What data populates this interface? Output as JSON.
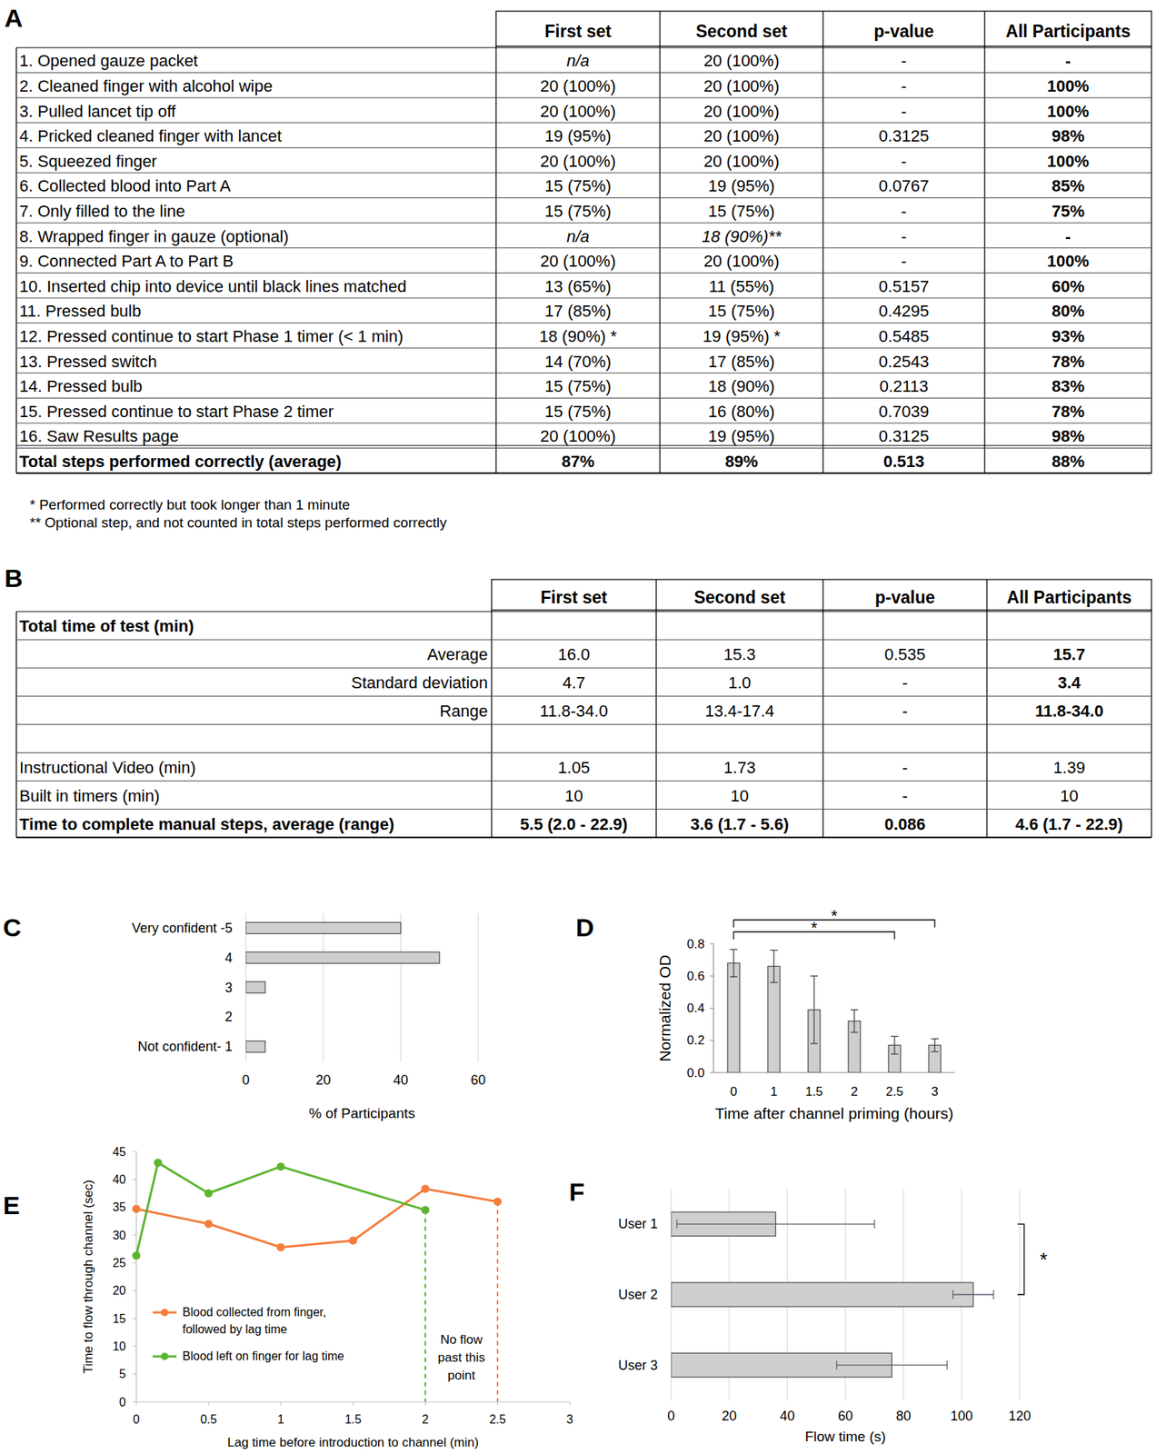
{
  "tables": [
    {
      "panel": "A",
      "header": [
        "First set",
        "Second set",
        "p-value",
        "All Participants"
      ],
      "rows": [
        {
          "label": "1. Opened gauze packet",
          "cells": [
            "n/a",
            "20 (100%)",
            "-",
            "-"
          ]
        },
        {
          "label": "2. Cleaned finger with alcohol wipe",
          "cells": [
            "20 (100%)",
            "20 (100%)",
            "-",
            "100%"
          ]
        },
        {
          "label": "3. Pulled lancet tip off",
          "cells": [
            "20 (100%)",
            "20 (100%)",
            "-",
            "100%"
          ]
        },
        {
          "label": "4. Pricked cleaned finger with lancet",
          "cells": [
            "19 (95%)",
            "20 (100%)",
            "0.3125",
            "98%"
          ]
        },
        {
          "label": "5. Squeezed finger",
          "cells": [
            "20 (100%)",
            "20 (100%)",
            "-",
            "100%"
          ]
        },
        {
          "label": "6. Collected blood into Part A",
          "cells": [
            "15 (75%)",
            "19 (95%)",
            "0.0767",
            "85%"
          ]
        },
        {
          "label": "7. Only filled to the line",
          "cells": [
            "15 (75%)",
            "15 (75%)",
            "-",
            "75%"
          ]
        },
        {
          "label": "8. Wrapped finger in gauze (optional)",
          "cells": [
            "n/a",
            "18 (90%)**",
            "-",
            "-"
          ]
        },
        {
          "label": "9. Connected Part A to Part B",
          "cells": [
            "20 (100%)",
            "20 (100%)",
            "-",
            "100%"
          ]
        },
        {
          "label": "10. Inserted chip into device until black lines matched",
          "cells": [
            "13 (65%)",
            "11 (55%)",
            "0.5157",
            "60%"
          ]
        },
        {
          "label": "11. Pressed bulb",
          "cells": [
            "17 (85%)",
            "15 (75%)",
            "0.4295",
            "80%"
          ]
        },
        {
          "label": "12. Pressed continue to start Phase 1 timer (< 1 min)",
          "cells": [
            "18 (90%) *",
            "19 (95%) *",
            "0.5485",
            "93%"
          ]
        },
        {
          "label": "13. Pressed switch",
          "cells": [
            "14 (70%)",
            "17 (85%)",
            "0.2543",
            "78%"
          ]
        },
        {
          "label": "14. Pressed bulb",
          "cells": [
            "15 (75%)",
            "18 (90%)",
            "0.2113",
            "83%"
          ]
        },
        {
          "label": "15. Pressed continue to start Phase 2 timer",
          "cells": [
            "15 (75%)",
            "16 (80%)",
            "0.7039",
            "78%"
          ]
        },
        {
          "label": "16. Saw Results page",
          "cells": [
            "20  (100%)",
            "19 (95%)",
            "0.3125",
            "98%"
          ]
        },
        {
          "label": "Total steps performed correctly (average)",
          "cells": [
            "87%",
            "89%",
            "0.513",
            "88%"
          ]
        }
      ],
      "footnotes": [
        "* Performed correctly but took longer than 1 minute",
        "** Optional step, and not counted in total steps performed correctly"
      ]
    },
    {
      "panel": "B",
      "header": [
        "First set",
        "Second set",
        "p-value",
        "All Participants"
      ],
      "rows": [
        {
          "label": "Total time of test (min)"
        },
        {
          "label": "Average",
          "cells": [
            "16.0",
            "15.3",
            "0.535",
            "15.7"
          ]
        },
        {
          "label": "Standard deviation",
          "cells": [
            "4.7",
            "1.0",
            "-",
            "3.4"
          ]
        },
        {
          "label": "Range",
          "cells": [
            "11.8-34.0",
            "13.4-17.4",
            "-",
            "11.8-34.0"
          ]
        },
        null,
        {
          "label": "Instructional Video (min)",
          "cells": [
            "1.05",
            "1.73",
            "-",
            "1.39"
          ]
        },
        {
          "label": "Built in timers (min)",
          "cells": [
            "10",
            "10",
            "-",
            "10"
          ]
        },
        {
          "label": "Time to complete manual steps, average (range)",
          "cells": [
            "5.5 (2.0 - 22.9)",
            "3.6 (1.7 - 5.6)",
            "0.086",
            "4.6 (1.7 - 22.9)"
          ]
        }
      ]
    }
  ],
  "chart_data": [
    {
      "panel": "C",
      "type": "bar",
      "orientation": "horizontal",
      "categories": [
        "Very confident -5",
        "4",
        "3",
        "2",
        "Not confident- 1"
      ],
      "values": [
        40,
        50,
        5,
        0,
        5
      ],
      "color": "#cfcfcf",
      "xlim": [
        0,
        60
      ],
      "xticks": [
        0,
        20,
        40,
        60
      ],
      "grid": true,
      "x_label": "% of Participants"
    },
    {
      "panel": "D",
      "type": "bar",
      "categories": [
        "0",
        "1",
        "1.5",
        "2",
        "2.5",
        "3"
      ],
      "values": [
        0.68,
        0.66,
        0.39,
        0.32,
        0.17,
        0.17
      ],
      "errors": [
        0.085,
        0.1,
        0.21,
        0.07,
        0.055,
        0.04
      ],
      "color": "#cfcfcf",
      "ylim": [
        0,
        0.8
      ],
      "yticks": [
        {
          "value": 0,
          "label": "0.0"
        },
        0.2,
        0.4,
        0.6,
        0.8
      ],
      "grid": false,
      "x_label": "Time after channel priming (hours)",
      "y_label": "Normalized OD",
      "annotations": [
        {
          "text": "*",
          "between": [
            "0",
            "2.5"
          ]
        },
        {
          "text": "*",
          "between": [
            "0",
            "3"
          ]
        }
      ]
    },
    {
      "panel": "E",
      "type": "line",
      "series": [
        {
          "name": "Blood collected from finger, followed by lag time",
          "color": "#f47d3c",
          "marker": "circle",
          "x": [
            0,
            0.5,
            1,
            1.5,
            2,
            2.5
          ],
          "values": [
            34.7,
            32,
            27.8,
            29,
            38.3,
            36
          ]
        },
        {
          "name": "Blood left on finger for lag time",
          "color": "#5cb531",
          "marker": "circle",
          "x": [
            0,
            0.15,
            0.5,
            1,
            2
          ],
          "values": [
            26.3,
            43,
            37.5,
            42.3,
            34.5
          ]
        }
      ],
      "xlim": [
        0,
        3
      ],
      "xticks": [
        0,
        0.5,
        1,
        1.5,
        2,
        2.5,
        3
      ],
      "ylim": [
        0,
        45
      ],
      "yticks": [
        0,
        5,
        10,
        15,
        20,
        25,
        30,
        35,
        40,
        45
      ],
      "grid": false,
      "legend": "lower left",
      "x_label": "Lag time before introduction to channel (min)",
      "y_label": "Time to flow through channel (sec)",
      "reference_lines": [
        {
          "x": 2,
          "color": "#5cb531",
          "line_style": "dashed"
        },
        {
          "x": 2.5,
          "color": "#f47d3c",
          "line_style": "dashed"
        }
      ],
      "annotations": [
        {
          "text": "No flow past this point",
          "x": 2.25,
          "y": 8
        }
      ]
    },
    {
      "panel": "F",
      "type": "bar",
      "orientation": "horizontal",
      "categories": [
        "User 1",
        "User 2",
        "User 3"
      ],
      "values": [
        36,
        104,
        76
      ],
      "errors": [
        34,
        7,
        19
      ],
      "color": "#cfcfcf",
      "xlim": [
        0,
        120
      ],
      "xticks": [
        0,
        20,
        40,
        60,
        80,
        100,
        120
      ],
      "grid": true,
      "x_label": "Flow time (s)",
      "annotations": [
        {
          "text": "*",
          "between": [
            "User 1",
            "User 2"
          ]
        }
      ]
    }
  ]
}
